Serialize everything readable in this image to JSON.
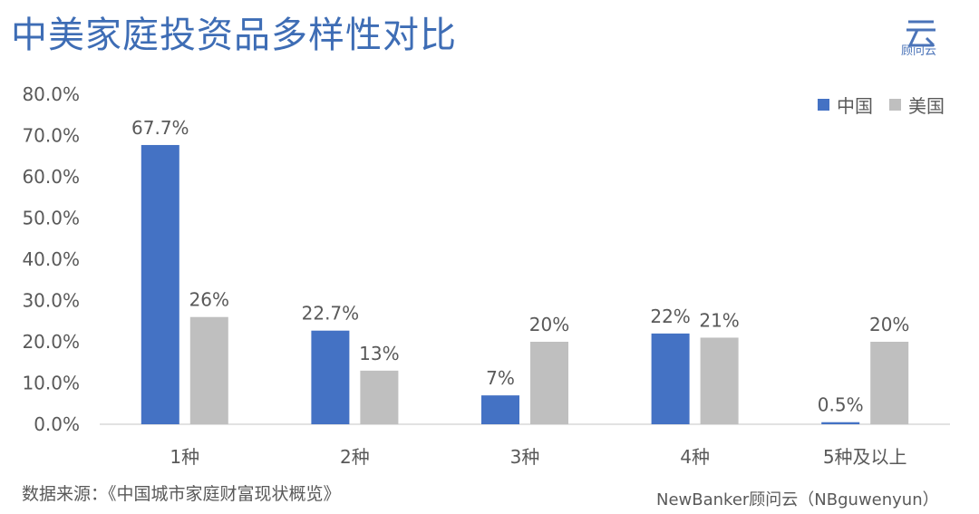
{
  "title": "中美家庭投资品多样性对比",
  "logo": {
    "text": "顾问云",
    "glyph": "云",
    "icon": "cloud-logo-icon"
  },
  "legend": [
    {
      "name": "中国",
      "color": "#4472c4"
    },
    {
      "name": "美国",
      "color": "#bfbfbf"
    }
  ],
  "source": "数据来源：《中国城市家庭财富现状概览》",
  "credit": "NewBanker顾问云（NBguwenyun）",
  "chart_data": {
    "type": "bar",
    "title": "中美家庭投资品多样性对比",
    "categories": [
      "1种",
      "2种",
      "3种",
      "4种",
      "5种及以上"
    ],
    "series": [
      {
        "name": "中国",
        "values": [
          67.7,
          22.7,
          7,
          22,
          0.5
        ],
        "labels": [
          "67.7%",
          "22.7%",
          "7%",
          "22%",
          "0.5%"
        ],
        "color": "#4472c4"
      },
      {
        "name": "美国",
        "values": [
          26,
          13,
          20,
          21,
          20
        ],
        "labels": [
          "26%",
          "13%",
          "20%",
          "21%",
          "20%"
        ],
        "color": "#bfbfbf"
      }
    ],
    "yticks": [
      "0.0%",
      "10.0%",
      "20.0%",
      "30.0%",
      "40.0%",
      "50.0%",
      "60.0%",
      "70.0%",
      "80.0%"
    ],
    "ylim": [
      0,
      80
    ],
    "grid": false,
    "legend_position": "top-right"
  }
}
